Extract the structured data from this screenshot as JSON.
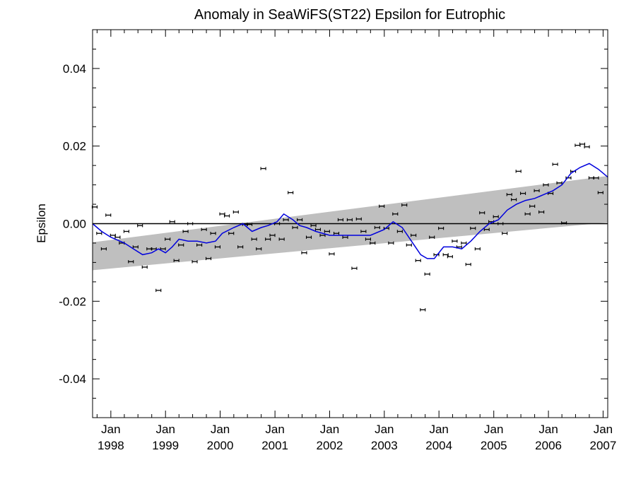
{
  "chart_data": {
    "type": "scatter",
    "title": "Anomaly in SeaWiFS(ST22) Epsilon for Eutrophic",
    "ylabel": "Epsilon",
    "xlabel": "",
    "xlim": [
      "1997-09-01",
      "2007-02-01"
    ],
    "ylim": [
      -0.05,
      0.05
    ],
    "yticks": [
      {
        "value": -0.04,
        "label": "-0.04"
      },
      {
        "value": -0.02,
        "label": "-0.02"
      },
      {
        "value": 0.0,
        "label": "0.00"
      },
      {
        "value": 0.02,
        "label": "0.02"
      },
      {
        "value": 0.04,
        "label": "0.04"
      }
    ],
    "xticks": [
      {
        "value": "1998-01-01",
        "label_top": "Jan",
        "label_bottom": "1998"
      },
      {
        "value": "1999-01-01",
        "label_top": "Jan",
        "label_bottom": "1999"
      },
      {
        "value": "2000-01-01",
        "label_top": "Jan",
        "label_bottom": "2000"
      },
      {
        "value": "2001-01-01",
        "label_top": "Jan",
        "label_bottom": "2001"
      },
      {
        "value": "2002-01-01",
        "label_top": "Jan",
        "label_bottom": "2002"
      },
      {
        "value": "2003-01-01",
        "label_top": "Jan",
        "label_bottom": "2003"
      },
      {
        "value": "2004-01-01",
        "label_top": "Jan",
        "label_bottom": "2004"
      },
      {
        "value": "2005-01-01",
        "label_top": "Jan",
        "label_bottom": "2005"
      },
      {
        "value": "2006-01-01",
        "label_top": "Jan",
        "label_bottom": "2006"
      },
      {
        "value": "2007-01-01",
        "label_top": "Jan",
        "label_bottom": "2007"
      }
    ],
    "grid": false,
    "legend": "none",
    "colors": {
      "points": "#000000",
      "running_mean": "#0000dd",
      "trend_band": "#bfbfbf",
      "zero_line": "#000000"
    },
    "trend_band": {
      "start": {
        "x": "1997-09-01",
        "upper": -0.0048,
        "lower": -0.012
      },
      "end": {
        "x": "2007-02-01",
        "upper": 0.0123,
        "lower": 0.0003
      }
    },
    "zero_line": 0.0,
    "points": [
      {
        "x": "1997-09-15",
        "y": 0.0043
      },
      {
        "x": "1997-10-15",
        "y": -0.0025
      },
      {
        "x": "1997-11-15",
        "y": -0.0065
      },
      {
        "x": "1997-12-15",
        "y": 0.0022
      },
      {
        "x": "1998-01-15",
        "y": -0.003
      },
      {
        "x": "1998-02-15",
        "y": -0.0035
      },
      {
        "x": "1998-03-15",
        "y": -0.005
      },
      {
        "x": "1998-04-15",
        "y": -0.002
      },
      {
        "x": "1998-05-15",
        "y": -0.0098
      },
      {
        "x": "1998-06-15",
        "y": -0.006
      },
      {
        "x": "1998-07-15",
        "y": -0.0005
      },
      {
        "x": "1998-08-15",
        "y": -0.0112
      },
      {
        "x": "1998-09-15",
        "y": -0.0065
      },
      {
        "x": "1998-10-15",
        "y": -0.0065
      },
      {
        "x": "1998-11-15",
        "y": -0.0172
      },
      {
        "x": "1998-12-15",
        "y": -0.0065
      },
      {
        "x": "1999-01-15",
        "y": -0.004
      },
      {
        "x": "1999-02-15",
        "y": 0.0005
      },
      {
        "x": "1999-03-15",
        "y": -0.0095
      },
      {
        "x": "1999-04-15",
        "y": -0.0055
      },
      {
        "x": "1999-05-15",
        "y": -0.002
      },
      {
        "x": "1999-06-15",
        "y": 0.0
      },
      {
        "x": "1999-07-15",
        "y": -0.0098
      },
      {
        "x": "1999-08-15",
        "y": -0.0055
      },
      {
        "x": "1999-09-15",
        "y": -0.0015
      },
      {
        "x": "1999-10-15",
        "y": -0.009
      },
      {
        "x": "1999-11-15",
        "y": -0.0025
      },
      {
        "x": "1999-12-15",
        "y": -0.006
      },
      {
        "x": "2000-01-15",
        "y": 0.0025
      },
      {
        "x": "2000-02-15",
        "y": 0.002
      },
      {
        "x": "2000-03-15",
        "y": -0.0025
      },
      {
        "x": "2000-04-15",
        "y": 0.003
      },
      {
        "x": "2000-05-15",
        "y": -0.006
      },
      {
        "x": "2000-06-15",
        "y": -0.0002
      },
      {
        "x": "2000-07-15",
        "y": -0.0002
      },
      {
        "x": "2000-08-15",
        "y": -0.004
      },
      {
        "x": "2000-09-15",
        "y": -0.0065
      },
      {
        "x": "2000-10-15",
        "y": 0.0142
      },
      {
        "x": "2000-11-15",
        "y": -0.004
      },
      {
        "x": "2000-12-15",
        "y": -0.003
      },
      {
        "x": "2001-01-15",
        "y": 0.0
      },
      {
        "x": "2001-02-15",
        "y": -0.004
      },
      {
        "x": "2001-03-15",
        "y": 0.001
      },
      {
        "x": "2001-04-15",
        "y": 0.008
      },
      {
        "x": "2001-05-15",
        "y": -0.001
      },
      {
        "x": "2001-06-15",
        "y": 0.001
      },
      {
        "x": "2001-07-15",
        "y": -0.0075
      },
      {
        "x": "2001-08-15",
        "y": -0.0035
      },
      {
        "x": "2001-09-15",
        "y": -0.0005
      },
      {
        "x": "2001-10-15",
        "y": -0.0015
      },
      {
        "x": "2001-11-15",
        "y": -0.003
      },
      {
        "x": "2001-12-15",
        "y": -0.002
      },
      {
        "x": "2002-01-15",
        "y": -0.0078
      },
      {
        "x": "2002-02-15",
        "y": -0.0025
      },
      {
        "x": "2002-03-15",
        "y": 0.001
      },
      {
        "x": "2002-04-15",
        "y": -0.0035
      },
      {
        "x": "2002-05-15",
        "y": 0.001
      },
      {
        "x": "2002-06-15",
        "y": -0.0115
      },
      {
        "x": "2002-07-15",
        "y": 0.0012
      },
      {
        "x": "2002-08-15",
        "y": -0.002
      },
      {
        "x": "2002-09-15",
        "y": -0.004
      },
      {
        "x": "2002-10-15",
        "y": -0.005
      },
      {
        "x": "2002-11-15",
        "y": -0.001
      },
      {
        "x": "2002-12-15",
        "y": 0.0045
      },
      {
        "x": "2003-01-15",
        "y": -0.0012
      },
      {
        "x": "2003-02-15",
        "y": -0.005
      },
      {
        "x": "2003-03-15",
        "y": 0.0025
      },
      {
        "x": "2003-04-15",
        "y": -0.002
      },
      {
        "x": "2003-05-15",
        "y": 0.0048
      },
      {
        "x": "2003-06-15",
        "y": -0.0055
      },
      {
        "x": "2003-07-15",
        "y": -0.003
      },
      {
        "x": "2003-08-15",
        "y": -0.0095
      },
      {
        "x": "2003-09-15",
        "y": -0.0222
      },
      {
        "x": "2003-10-15",
        "y": -0.013
      },
      {
        "x": "2003-11-15",
        "y": -0.0035
      },
      {
        "x": "2003-12-15",
        "y": -0.008
      },
      {
        "x": "2004-01-15",
        "y": -0.0012
      },
      {
        "x": "2004-02-15",
        "y": -0.008
      },
      {
        "x": "2004-03-15",
        "y": -0.0085
      },
      {
        "x": "2004-04-15",
        "y": -0.0045
      },
      {
        "x": "2004-05-15",
        "y": -0.006
      },
      {
        "x": "2004-06-15",
        "y": -0.005
      },
      {
        "x": "2004-07-15",
        "y": -0.0105
      },
      {
        "x": "2004-08-15",
        "y": -0.0012
      },
      {
        "x": "2004-09-15",
        "y": -0.0065
      },
      {
        "x": "2004-10-15",
        "y": 0.0028
      },
      {
        "x": "2004-11-15",
        "y": -0.0015
      },
      {
        "x": "2004-12-15",
        "y": 0.0005
      },
      {
        "x": "2005-01-15",
        "y": 0.0018
      },
      {
        "x": "2005-02-15",
        "y": 0.0
      },
      {
        "x": "2005-03-15",
        "y": -0.0025
      },
      {
        "x": "2005-04-15",
        "y": 0.0075
      },
      {
        "x": "2005-05-15",
        "y": 0.0062
      },
      {
        "x": "2005-06-15",
        "y": 0.0135
      },
      {
        "x": "2005-07-15",
        "y": 0.0078
      },
      {
        "x": "2005-08-15",
        "y": 0.0025
      },
      {
        "x": "2005-09-15",
        "y": 0.0045
      },
      {
        "x": "2005-10-15",
        "y": 0.0085
      },
      {
        "x": "2005-11-15",
        "y": 0.003
      },
      {
        "x": "2005-12-15",
        "y": 0.01
      },
      {
        "x": "2006-01-15",
        "y": 0.0078
      },
      {
        "x": "2006-02-15",
        "y": 0.0153
      },
      {
        "x": "2006-03-15",
        "y": 0.0105
      },
      {
        "x": "2006-04-15",
        "y": 0.0002
      },
      {
        "x": "2006-05-15",
        "y": 0.0118
      },
      {
        "x": "2006-06-15",
        "y": 0.0135
      },
      {
        "x": "2006-07-15",
        "y": 0.0202
      },
      {
        "x": "2006-08-15",
        "y": 0.0205
      },
      {
        "x": "2006-09-15",
        "y": 0.0198
      },
      {
        "x": "2006-10-15",
        "y": 0.0118
      },
      {
        "x": "2006-11-15",
        "y": 0.0118
      },
      {
        "x": "2006-12-15",
        "y": 0.008
      }
    ],
    "running_mean": [
      {
        "x": "1997-09-01",
        "y": 0.0
      },
      {
        "x": "1997-11-01",
        "y": -0.002
      },
      {
        "x": "1998-01-01",
        "y": -0.0035
      },
      {
        "x": "1998-04-01",
        "y": -0.005
      },
      {
        "x": "1998-06-01",
        "y": -0.0065
      },
      {
        "x": "1998-08-01",
        "y": -0.008
      },
      {
        "x": "1998-10-01",
        "y": -0.0075
      },
      {
        "x": "1998-11-15",
        "y": -0.0065
      },
      {
        "x": "1999-01-01",
        "y": -0.0075
      },
      {
        "x": "1999-02-15",
        "y": -0.006
      },
      {
        "x": "1999-04-01",
        "y": -0.004
      },
      {
        "x": "1999-06-01",
        "y": -0.0045
      },
      {
        "x": "1999-08-01",
        "y": -0.0045
      },
      {
        "x": "1999-10-01",
        "y": -0.005
      },
      {
        "x": "1999-12-01",
        "y": -0.0045
      },
      {
        "x": "2000-01-15",
        "y": -0.0025
      },
      {
        "x": "2000-04-01",
        "y": -0.001
      },
      {
        "x": "2000-06-01",
        "y": 0.0
      },
      {
        "x": "2000-08-01",
        "y": -0.002
      },
      {
        "x": "2000-10-01",
        "y": -0.001
      },
      {
        "x": "2000-11-15",
        "y": -0.0005
      },
      {
        "x": "2001-01-15",
        "y": 0.0005
      },
      {
        "x": "2001-03-01",
        "y": 0.0025
      },
      {
        "x": "2001-05-01",
        "y": 0.001
      },
      {
        "x": "2001-06-15",
        "y": -0.0005
      },
      {
        "x": "2001-08-01",
        "y": -0.001
      },
      {
        "x": "2001-10-01",
        "y": -0.002
      },
      {
        "x": "2002-01-01",
        "y": -0.003
      },
      {
        "x": "2002-04-01",
        "y": -0.003
      },
      {
        "x": "2002-07-01",
        "y": -0.003
      },
      {
        "x": "2002-10-01",
        "y": -0.003
      },
      {
        "x": "2003-01-01",
        "y": -0.0015
      },
      {
        "x": "2003-03-01",
        "y": 0.0005
      },
      {
        "x": "2003-05-01",
        "y": -0.001
      },
      {
        "x": "2003-07-01",
        "y": -0.0045
      },
      {
        "x": "2003-09-01",
        "y": -0.008
      },
      {
        "x": "2003-10-15",
        "y": -0.009
      },
      {
        "x": "2003-12-01",
        "y": -0.009
      },
      {
        "x": "2004-02-01",
        "y": -0.006
      },
      {
        "x": "2004-04-01",
        "y": -0.006
      },
      {
        "x": "2004-06-01",
        "y": -0.0065
      },
      {
        "x": "2004-08-01",
        "y": -0.0045
      },
      {
        "x": "2004-10-01",
        "y": -0.002
      },
      {
        "x": "2004-12-01",
        "y": 0.0
      },
      {
        "x": "2005-02-01",
        "y": 0.001
      },
      {
        "x": "2005-04-01",
        "y": 0.0035
      },
      {
        "x": "2005-06-01",
        "y": 0.005
      },
      {
        "x": "2005-08-01",
        "y": 0.006
      },
      {
        "x": "2005-10-01",
        "y": 0.0065
      },
      {
        "x": "2005-12-01",
        "y": 0.0075
      },
      {
        "x": "2006-02-01",
        "y": 0.0085
      },
      {
        "x": "2006-04-01",
        "y": 0.01
      },
      {
        "x": "2006-06-01",
        "y": 0.013
      },
      {
        "x": "2006-08-01",
        "y": 0.0145
      },
      {
        "x": "2006-10-01",
        "y": 0.0155
      },
      {
        "x": "2006-12-01",
        "y": 0.014
      },
      {
        "x": "2007-02-01",
        "y": 0.012
      }
    ]
  }
}
